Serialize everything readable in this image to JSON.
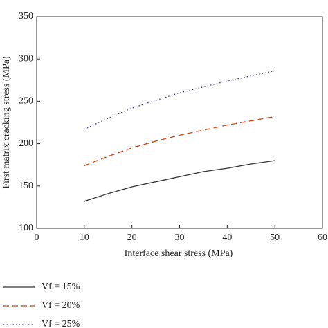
{
  "chart_data": {
    "type": "line",
    "xlabel": "Interface shear stress (MPa)",
    "ylabel": "First matrix cracking stress (MPa)",
    "x": [
      10,
      15,
      20,
      25,
      30,
      35,
      40,
      45,
      50
    ],
    "series": [
      {
        "name": "Vf = 15%",
        "color": "#333333",
        "dash": "solid",
        "values": [
          132,
          141,
          149,
          155,
          161,
          167,
          171,
          176,
          180
        ]
      },
      {
        "name": "Vf = 20%",
        "color": "#d4400f",
        "dash": "dashed",
        "values": [
          174,
          185,
          195,
          203,
          210,
          216,
          222,
          227,
          232
        ]
      },
      {
        "name": "Vf = 25%",
        "color": "#4a3fa0",
        "dash": "dotted",
        "values": [
          217,
          230,
          242,
          251,
          260,
          267,
          274,
          280,
          286
        ]
      }
    ],
    "xlim": [
      0,
      60
    ],
    "xticks": [
      0,
      10,
      20,
      30,
      40,
      50,
      60
    ],
    "ylim": [
      100,
      350
    ],
    "yticks": [
      100,
      150,
      200,
      250,
      300,
      350
    ],
    "legend": "below"
  }
}
